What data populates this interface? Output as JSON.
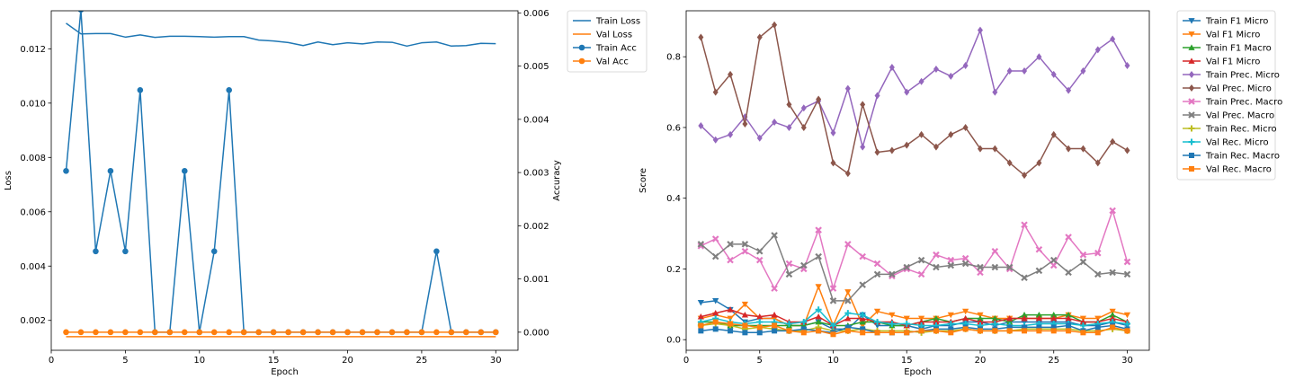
{
  "chart_data": [
    {
      "type": "line",
      "xlabel": "Epoch",
      "ylabel": "Loss",
      "y2label": "Accuracy",
      "xlim": [
        0,
        31.5
      ],
      "ylim": [
        0.0009,
        0.0134
      ],
      "y2lim": [
        -0.00034,
        0.00604
      ],
      "xticks": [
        0,
        5,
        10,
        15,
        20,
        25,
        30
      ],
      "yticks": [
        0.002,
        0.004,
        0.006,
        0.008,
        0.01,
        0.012
      ],
      "ytick_labels": [
        "0.002",
        "0.004",
        "0.006",
        "0.008",
        "0.010",
        "0.012"
      ],
      "y2ticks": [
        0.0,
        0.001,
        0.002,
        0.003,
        0.004,
        0.005,
        0.006
      ],
      "y2tick_labels": [
        "0.000",
        "0.001",
        "0.002",
        "0.003",
        "0.004",
        "0.005",
        "0.006"
      ],
      "legend_position": "outside-upper-right",
      "x": [
        1,
        2,
        3,
        4,
        5,
        6,
        7,
        8,
        9,
        10,
        11,
        12,
        13,
        14,
        15,
        16,
        17,
        18,
        19,
        20,
        21,
        22,
        23,
        24,
        25,
        26,
        27,
        28,
        29,
        30
      ],
      "series": [
        {
          "name": "Train Loss",
          "axis": "left",
          "color": "#1f77b4",
          "marker": "none",
          "values": [
            0.01294,
            0.01255,
            0.01256,
            0.01256,
            0.01243,
            0.01251,
            0.01242,
            0.01246,
            0.01246,
            0.01245,
            0.01243,
            0.01245,
            0.01245,
            0.01232,
            0.01229,
            0.01223,
            0.01212,
            0.01225,
            0.01215,
            0.01222,
            0.01218,
            0.01225,
            0.01224,
            0.0121,
            0.01222,
            0.01225,
            0.0121,
            0.01212,
            0.0122,
            0.01219
          ]
        },
        {
          "name": "Val Loss",
          "axis": "left",
          "color": "#ff7f0e",
          "marker": "none",
          "values": [
            0.0014,
            0.0014,
            0.0014,
            0.0014,
            0.0014,
            0.0014,
            0.0014,
            0.0014,
            0.0014,
            0.0014,
            0.0014,
            0.0014,
            0.0014,
            0.0014,
            0.0014,
            0.0014,
            0.0014,
            0.0014,
            0.0014,
            0.0014,
            0.0014,
            0.0014,
            0.0014,
            0.0014,
            0.0014,
            0.0014,
            0.0014,
            0.0014,
            0.0014,
            0.0014
          ]
        },
        {
          "name": "Train Acc",
          "axis": "right",
          "color": "#1f77b4",
          "marker": "circle",
          "values": [
            0.00303,
            0.00606,
            0.00152,
            0.00303,
            0.00152,
            0.00455,
            0,
            0,
            0.00303,
            0,
            0.00152,
            0.00455,
            0,
            0,
            0,
            0,
            0,
            0,
            0,
            0,
            0,
            0,
            0,
            0,
            0,
            0.00152,
            0,
            0,
            0,
            0
          ]
        },
        {
          "name": "Val Acc",
          "axis": "right",
          "color": "#ff7f0e",
          "marker": "circle",
          "values": [
            0,
            0,
            0,
            0,
            0,
            0,
            0,
            0,
            0,
            0,
            0,
            0,
            0,
            0,
            0,
            0,
            0,
            0,
            0,
            0,
            0,
            0,
            0,
            0,
            0,
            0,
            0,
            0,
            0,
            0
          ]
        }
      ]
    },
    {
      "type": "line",
      "xlabel": "Epoch",
      "ylabel": "Score",
      "xlim": [
        0,
        31.5
      ],
      "ylim": [
        -0.03,
        0.93
      ],
      "xticks": [
        0,
        5,
        10,
        15,
        20,
        25,
        30
      ],
      "yticks": [
        0.0,
        0.2,
        0.4,
        0.6,
        0.8
      ],
      "ytick_labels": [
        "0.0",
        "0.2",
        "0.4",
        "0.6",
        "0.8"
      ],
      "legend_position": "outside-upper-right",
      "x": [
        1,
        2,
        3,
        4,
        5,
        6,
        7,
        8,
        9,
        10,
        11,
        12,
        13,
        14,
        15,
        16,
        17,
        18,
        19,
        20,
        21,
        22,
        23,
        24,
        25,
        26,
        27,
        28,
        29,
        30
      ],
      "series": [
        {
          "name": "Train F1 Micro",
          "color": "#1f77b4",
          "marker": "tri_down",
          "values": [
            0.105,
            0.11,
            0.085,
            0.05,
            0.06,
            0.06,
            0.04,
            0.04,
            0.05,
            0.03,
            0.03,
            0.07,
            0.04,
            0.04,
            0.04,
            0.03,
            0.04,
            0.04,
            0.05,
            0.05,
            0.04,
            0.05,
            0.05,
            0.05,
            0.05,
            0.05,
            0.04,
            0.04,
            0.05,
            0.04
          ]
        },
        {
          "name": "Val F1 Micro",
          "color": "#ff7f0e",
          "marker": "tri_down",
          "values": [
            0.06,
            0.07,
            0.06,
            0.1,
            0.06,
            0.06,
            0.04,
            0.04,
            0.15,
            0.04,
            0.135,
            0.04,
            0.08,
            0.07,
            0.06,
            0.06,
            0.06,
            0.07,
            0.08,
            0.07,
            0.06,
            0.06,
            0.06,
            0.06,
            0.06,
            0.07,
            0.06,
            0.06,
            0.08,
            0.07
          ]
        },
        {
          "name": "Train F1 Macro",
          "color": "#2ca02c",
          "marker": "tri_up",
          "values": [
            0.05,
            0.05,
            0.04,
            0.04,
            0.04,
            0.04,
            0.04,
            0.04,
            0.05,
            0.04,
            0.04,
            0.05,
            0.05,
            0.04,
            0.04,
            0.05,
            0.06,
            0.05,
            0.06,
            0.06,
            0.06,
            0.05,
            0.07,
            0.07,
            0.07,
            0.07,
            0.05,
            0.05,
            0.07,
            0.05
          ]
        },
        {
          "name": "Val F1 Micro",
          "color": "#d62728",
          "marker": "tri_up",
          "values": [
            0.065,
            0.075,
            0.085,
            0.07,
            0.065,
            0.07,
            0.05,
            0.05,
            0.065,
            0.04,
            0.06,
            0.06,
            0.05,
            0.05,
            0.04,
            0.05,
            0.05,
            0.05,
            0.06,
            0.05,
            0.05,
            0.06,
            0.06,
            0.06,
            0.06,
            0.06,
            0.05,
            0.05,
            0.06,
            0.05
          ]
        },
        {
          "name": "Train Prec. Micro",
          "color": "#9467bd",
          "marker": "diamond",
          "values": [
            0.605,
            0.565,
            0.58,
            0.63,
            0.57,
            0.615,
            0.6,
            0.655,
            0.675,
            0.585,
            0.71,
            0.545,
            0.69,
            0.77,
            0.7,
            0.73,
            0.765,
            0.745,
            0.775,
            0.875,
            0.7,
            0.76,
            0.76,
            0.8,
            0.75,
            0.705,
            0.76,
            0.82,
            0.85,
            0.775
          ]
        },
        {
          "name": "Val Prec. Micro",
          "color": "#8c564b",
          "marker": "diamond",
          "values": [
            0.855,
            0.7,
            0.75,
            0.61,
            0.855,
            0.89,
            0.665,
            0.6,
            0.68,
            0.5,
            0.47,
            0.665,
            0.53,
            0.535,
            0.55,
            0.58,
            0.545,
            0.58,
            0.6,
            0.54,
            0.54,
            0.5,
            0.465,
            0.5,
            0.58,
            0.54,
            0.54,
            0.5,
            0.56,
            0.535
          ]
        },
        {
          "name": "Train Prec. Macro",
          "color": "#e377c2",
          "marker": "x",
          "values": [
            0.265,
            0.285,
            0.225,
            0.25,
            0.225,
            0.145,
            0.215,
            0.2,
            0.31,
            0.145,
            0.27,
            0.235,
            0.215,
            0.18,
            0.2,
            0.185,
            0.24,
            0.225,
            0.23,
            0.19,
            0.25,
            0.2,
            0.325,
            0.255,
            0.21,
            0.29,
            0.24,
            0.245,
            0.365,
            0.22
          ]
        },
        {
          "name": "Val Prec. Macro",
          "color": "#7f7f7f",
          "marker": "x",
          "values": [
            0.27,
            0.235,
            0.27,
            0.27,
            0.25,
            0.295,
            0.185,
            0.21,
            0.235,
            0.11,
            0.11,
            0.155,
            0.185,
            0.185,
            0.205,
            0.225,
            0.205,
            0.21,
            0.215,
            0.205,
            0.205,
            0.205,
            0.175,
            0.195,
            0.225,
            0.19,
            0.22,
            0.185,
            0.19,
            0.185
          ]
        },
        {
          "name": "Train Rec. Micro",
          "color": "#bcbd22",
          "marker": "plus",
          "values": [
            0.04,
            0.045,
            0.04,
            0.03,
            0.035,
            0.03,
            0.025,
            0.025,
            0.035,
            0.025,
            0.025,
            0.03,
            0.025,
            0.025,
            0.025,
            0.02,
            0.025,
            0.025,
            0.03,
            0.025,
            0.025,
            0.025,
            0.03,
            0.03,
            0.03,
            0.03,
            0.025,
            0.025,
            0.03,
            0.025
          ]
        },
        {
          "name": "Val Rec. Micro",
          "color": "#17becf",
          "marker": "plus",
          "values": [
            0.05,
            0.06,
            0.05,
            0.045,
            0.05,
            0.05,
            0.045,
            0.05,
            0.085,
            0.04,
            0.075,
            0.07,
            0.05,
            0.045,
            0.045,
            0.04,
            0.04,
            0.045,
            0.045,
            0.04,
            0.045,
            0.04,
            0.04,
            0.045,
            0.045,
            0.045,
            0.04,
            0.045,
            0.05,
            0.045
          ]
        },
        {
          "name": "Train Rec. Macro",
          "color": "#1f77b4",
          "marker": "square",
          "values": [
            0.025,
            0.03,
            0.025,
            0.02,
            0.02,
            0.025,
            0.025,
            0.03,
            0.025,
            0.02,
            0.035,
            0.03,
            0.02,
            0.02,
            0.02,
            0.025,
            0.03,
            0.03,
            0.035,
            0.03,
            0.03,
            0.035,
            0.035,
            0.035,
            0.035,
            0.04,
            0.025,
            0.035,
            0.04,
            0.03
          ]
        },
        {
          "name": "Val Rec. Macro",
          "color": "#ff7f0e",
          "marker": "square",
          "values": [
            0.04,
            0.05,
            0.045,
            0.04,
            0.035,
            0.04,
            0.025,
            0.02,
            0.025,
            0.015,
            0.025,
            0.02,
            0.02,
            0.02,
            0.02,
            0.025,
            0.025,
            0.02,
            0.03,
            0.025,
            0.025,
            0.025,
            0.025,
            0.025,
            0.025,
            0.025,
            0.02,
            0.02,
            0.035,
            0.025
          ]
        }
      ]
    }
  ]
}
